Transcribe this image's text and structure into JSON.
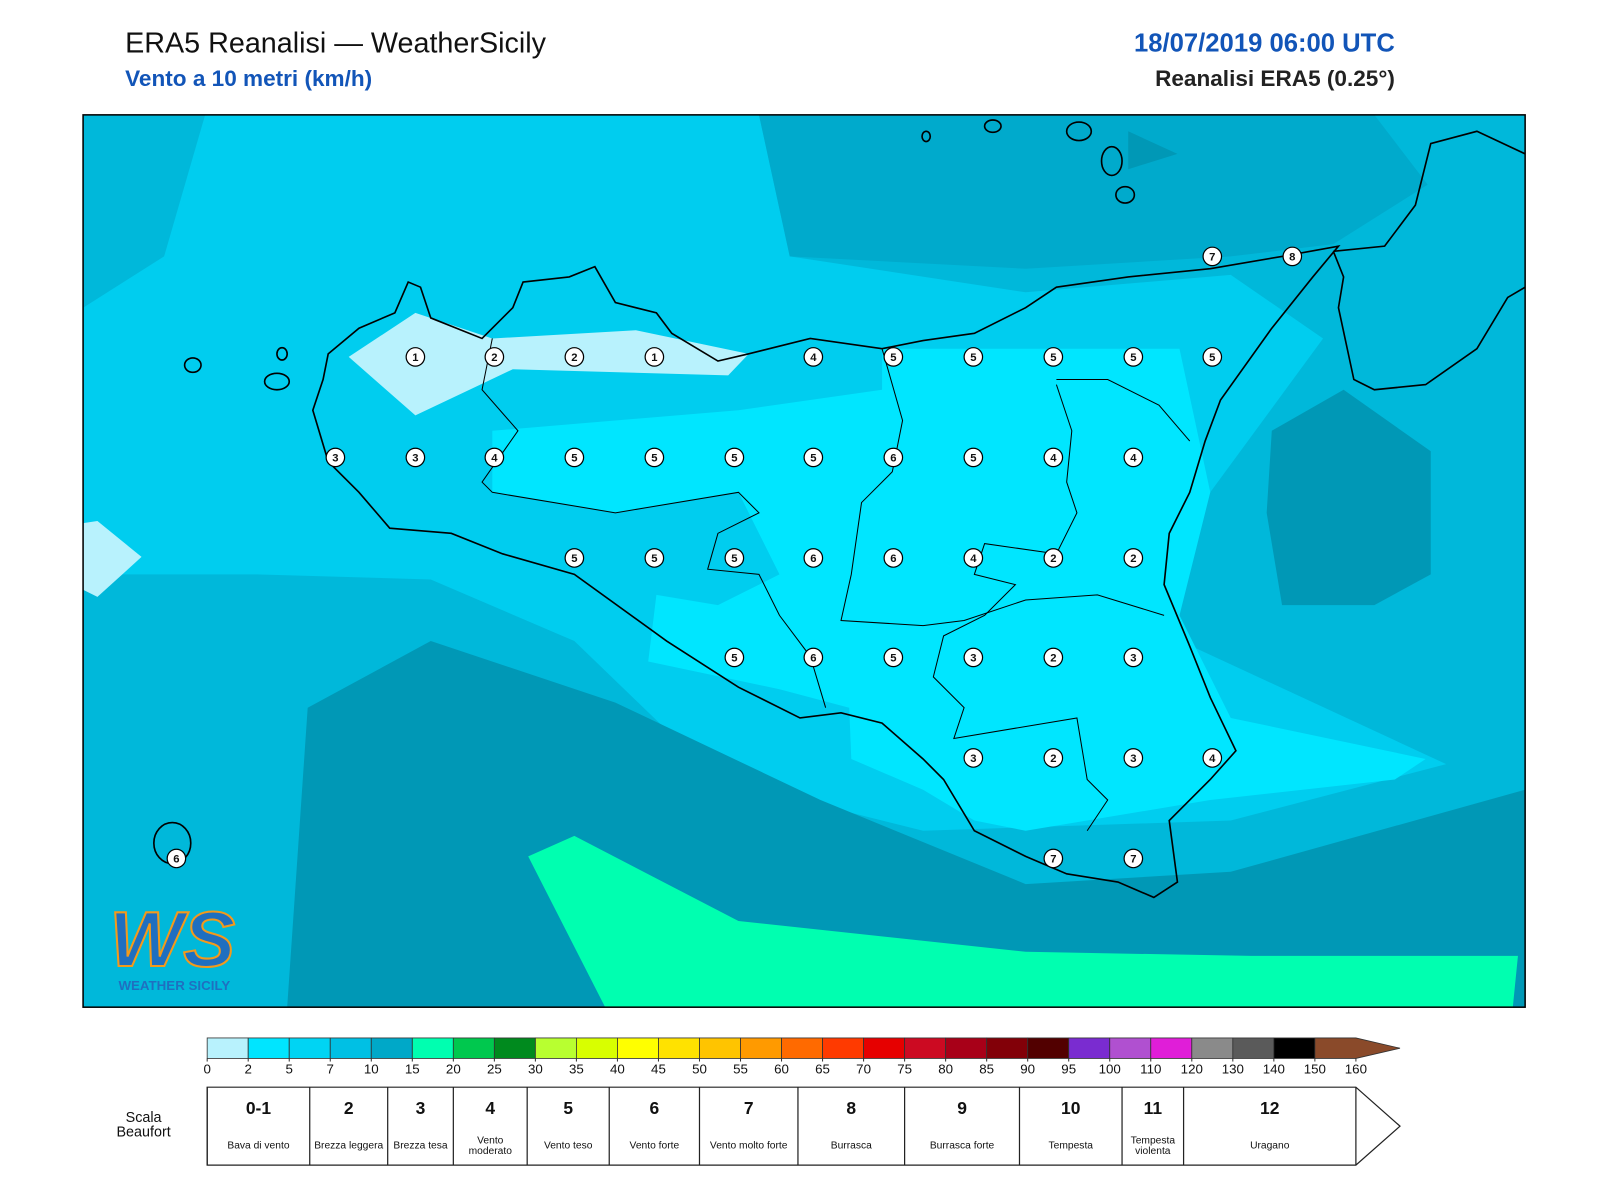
{
  "header": {
    "title": "ERA5 Reanalisi — WeatherSicily",
    "subtitle": "Vento a 10 metri (km/h)",
    "datetime": "18/07/2019 06:00 UTC",
    "source": "Reanalisi ERA5 (0.25°)"
  },
  "stations": [
    1,
    2,
    2,
    1,
    4,
    5,
    5,
    5,
    5,
    5,
    3,
    3,
    4,
    5,
    5,
    5,
    5,
    6,
    5,
    4,
    4,
    5,
    5,
    5,
    6,
    6,
    4,
    2,
    2,
    5,
    6,
    5,
    3,
    2,
    3,
    3,
    2,
    3,
    4,
    7,
    7,
    7,
    8,
    6
  ],
  "colorbar": {
    "ticks": [
      0,
      2,
      5,
      7,
      10,
      15,
      20,
      25,
      30,
      35,
      40,
      45,
      50,
      55,
      60,
      65,
      70,
      75,
      80,
      85,
      90,
      95,
      100,
      110,
      120,
      130,
      140,
      150,
      160
    ],
    "colors": [
      "#b8f2fd",
      "#00e5ff",
      "#00d4f3",
      "#00c0e4",
      "#00a8c8",
      "#00ffb0",
      "#00c84e",
      "#008a1e",
      "#b8ff30",
      "#d8ff00",
      "#ffff00",
      "#ffe200",
      "#ffc400",
      "#ff9a00",
      "#ff6a00",
      "#ff3a00",
      "#e60000",
      "#cc0a22",
      "#a80018",
      "#820008",
      "#520000",
      "#7a2cd0",
      "#b050d0",
      "#e01ed8",
      "#8a8a8a",
      "#5a5a5a",
      "#000000",
      "#8a4a2a",
      "#cc8848"
    ]
  },
  "beaufort": {
    "label": "Scala Beaufort",
    "items": [
      {
        "number": "0-1",
        "description": "Bava di vento"
      },
      {
        "number": 2,
        "description": "Brezza leggera"
      },
      {
        "number": 3,
        "description": "Brezza tesa"
      },
      {
        "number": 4,
        "description": "Vento moderato"
      },
      {
        "number": 5,
        "description": "Vento teso"
      },
      {
        "number": 6,
        "description": "Vento forte"
      },
      {
        "number": 7,
        "description": "Vento molto forte"
      },
      {
        "number": 8,
        "description": "Burrasca"
      },
      {
        "number": 9,
        "description": "Burrasca forte"
      },
      {
        "number": 10,
        "description": "Tempesta"
      },
      {
        "number": 11,
        "description": "Tempesta violenta"
      },
      {
        "number": 12,
        "description": "Uragano"
      }
    ]
  },
  "logo": {
    "mark": "WS",
    "name": "WEATHER SICILY"
  }
}
